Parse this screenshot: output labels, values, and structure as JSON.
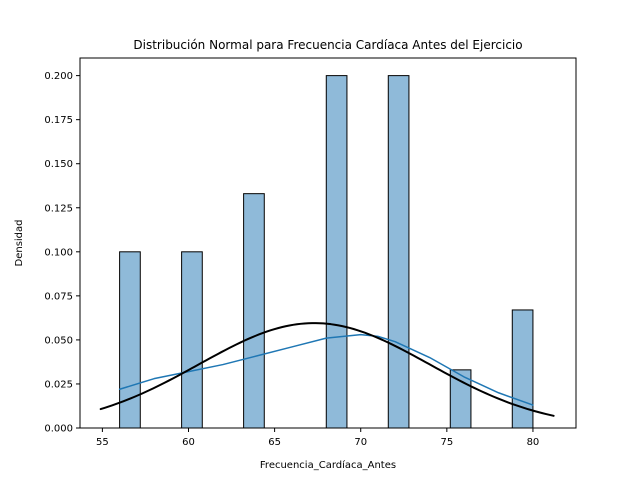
{
  "chart_data": {
    "type": "bar",
    "title": "Distribución Normal para Frecuencia Cardíaca Antes del Ejercicio",
    "xlabel": "Frecuencia_Cardíaca_Antes",
    "ylabel": "Densidad",
    "xlim": [
      53.7,
      82.5
    ],
    "ylim": [
      0,
      0.21
    ],
    "xticks": [
      55,
      60,
      65,
      70,
      75,
      80
    ],
    "yticks": [
      0.0,
      0.025,
      0.05,
      0.075,
      0.1,
      0.125,
      0.15,
      0.175,
      0.2
    ],
    "ytick_labels": [
      "0.000",
      "0.025",
      "0.050",
      "0.075",
      "0.100",
      "0.125",
      "0.150",
      "0.175",
      "0.200"
    ],
    "histogram": {
      "bin_edges_start": 56,
      "bin_width": 1.2,
      "bars": [
        {
          "x0": 56.0,
          "x1": 57.2,
          "density": 0.1
        },
        {
          "x0": 59.6,
          "x1": 60.8,
          "density": 0.1
        },
        {
          "x0": 63.2,
          "x1": 64.4,
          "density": 0.133
        },
        {
          "x0": 68.0,
          "x1": 69.2,
          "density": 0.2
        },
        {
          "x0": 71.6,
          "x1": 72.8,
          "density": 0.2
        },
        {
          "x0": 75.2,
          "x1": 76.4,
          "density": 0.033
        },
        {
          "x0": 78.8,
          "x1": 80.0,
          "density": 0.067
        }
      ],
      "fill_color": "#8fbad9",
      "edge_color": "#000000"
    },
    "series": [
      {
        "kind": "kde",
        "color": "#1f77b4",
        "x": [
          56,
          58,
          60,
          62,
          64,
          66,
          68,
          69,
          70,
          71,
          72,
          74,
          76,
          78,
          80
        ],
        "y": [
          0.022,
          0.028,
          0.032,
          0.036,
          0.041,
          0.046,
          0.051,
          0.052,
          0.053,
          0.052,
          0.049,
          0.04,
          0.029,
          0.02,
          0.013
        ]
      },
      {
        "kind": "normal-pdf",
        "color": "#000000",
        "mean": 67.3,
        "std": 6.7,
        "x_range": [
          54.9,
          81.2
        ]
      }
    ]
  }
}
